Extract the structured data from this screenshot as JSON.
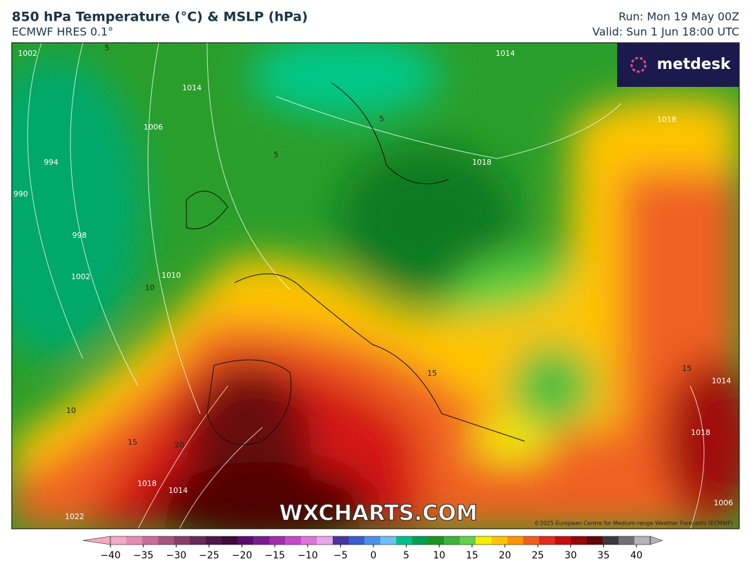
{
  "header": {
    "title": "850 hPa Temperature (°C) & MSLP (hPa)",
    "subtitle": "ECMWF HRES 0.1°",
    "run": "Run: Mon 19 May 00Z",
    "valid": "Valid: Sun 1 Jun 18:00 UTC"
  },
  "logo": "metdesk",
  "watermark": "WXCHARTS.COM",
  "copyright": "©2025 European Centre for Medium-range Weather Forecasts (ECMWF)",
  "map": {
    "labels": [
      "1002",
      "5",
      "1014",
      "1006",
      "994",
      "990",
      "998",
      "1002",
      "1010",
      "10",
      "1014",
      "5",
      "5",
      "1018",
      "1018",
      "15",
      "10",
      "15",
      "20",
      "1018",
      "1014",
      "1022",
      "15",
      "1014",
      "1018",
      "1006"
    ]
  },
  "colorbar": {
    "colors": [
      "#f4a9c4",
      "#e58cb2",
      "#c86c99",
      "#a9537f",
      "#873f69",
      "#692a57",
      "#4f1747",
      "#3d0b3d",
      "#5c0c6e",
      "#7d1c90",
      "#a02eae",
      "#c44ac8",
      "#dc74dc",
      "#eaa6ea",
      "#4836a0",
      "#3a5cd2",
      "#4c90ea",
      "#6cc0f2",
      "#00c08a",
      "#00a050",
      "#1e9420",
      "#3cb43a",
      "#62d24a",
      "#f2f000",
      "#ffc400",
      "#ff9400",
      "#f05e1e",
      "#e42c1c",
      "#c80e0e",
      "#960808",
      "#600606",
      "#3a3a3a",
      "#707070",
      "#b4b4b4"
    ],
    "ticks": [
      {
        "value": -40,
        "label": "−40"
      },
      {
        "value": -35,
        "label": "−35"
      },
      {
        "value": -30,
        "label": "−30"
      },
      {
        "value": -25,
        "label": "−25"
      },
      {
        "value": -20,
        "label": "−20"
      },
      {
        "value": -15,
        "label": "−15"
      },
      {
        "value": -10,
        "label": "−10"
      },
      {
        "value": -5,
        "label": "−5"
      },
      0,
      5,
      10,
      15,
      20,
      25,
      30,
      35,
      40
    ]
  }
}
